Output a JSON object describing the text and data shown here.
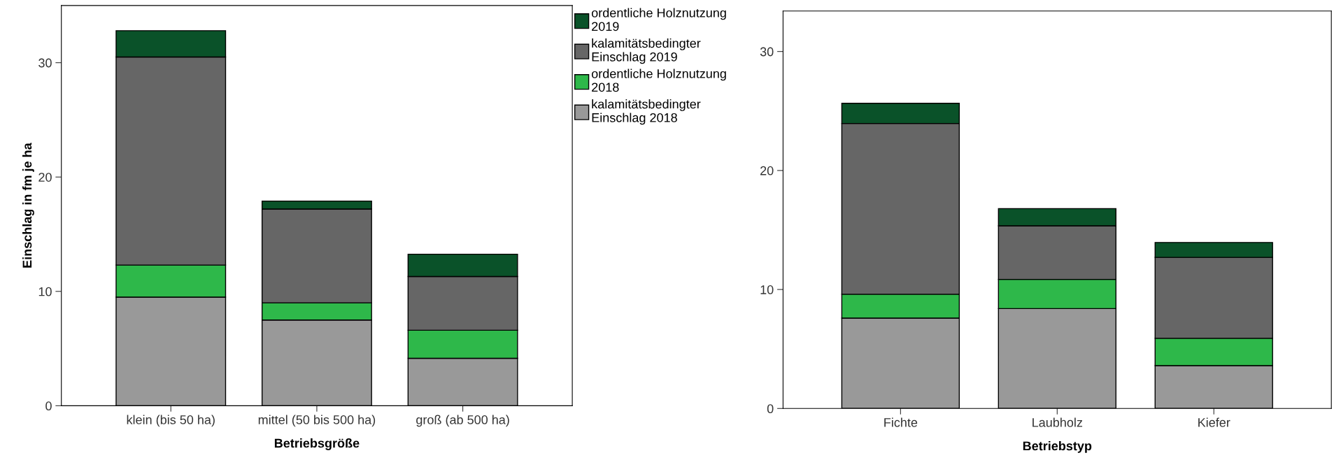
{
  "chart_data": [
    {
      "type": "bar",
      "stacked": true,
      "xlabel": "Betriebsgröße",
      "ylabel": "Einschlag in fm je ha",
      "categories": [
        "klein (bis 50 ha)",
        "mittel (50 bis 500 ha)",
        "groß (ab 500 ha)"
      ],
      "ylim": [
        0,
        35
      ],
      "yticks": [
        0,
        10,
        20,
        30
      ],
      "legend": "right",
      "grid": false,
      "series": [
        {
          "name": "kalamitätsbedingter Einschlag 2018",
          "color": "#999999",
          "values": [
            9.5,
            7.5,
            4.15
          ]
        },
        {
          "name": "ordentliche Holznutzung 2018",
          "color": "#2eb84a",
          "values": [
            2.8,
            1.5,
            2.45
          ]
        },
        {
          "name": "kalamitätsbedingter Einschlag 2019",
          "color": "#666666",
          "values": [
            18.2,
            8.2,
            4.7
          ]
        },
        {
          "name": "ordentliche Holznutzung 2019",
          "color": "#0a5229",
          "values": [
            2.3,
            0.7,
            1.95
          ]
        }
      ]
    },
    {
      "type": "bar",
      "stacked": true,
      "xlabel": "Betriebstyp",
      "categories": [
        "Fichte",
        "Laubholz",
        "Kiefer"
      ],
      "ylim": [
        0,
        33.4
      ],
      "yticks": [
        0,
        10,
        20,
        30
      ],
      "grid": false,
      "series": [
        {
          "color": "#999999",
          "values": [
            7.6,
            8.4,
            3.6
          ]
        },
        {
          "color": "#2eb84a",
          "values": [
            2.0,
            2.45,
            2.3
          ]
        },
        {
          "color": "#666666",
          "values": [
            14.35,
            4.5,
            6.8
          ]
        },
        {
          "color": "#0a5229",
          "values": [
            1.7,
            1.45,
            1.25
          ]
        }
      ]
    }
  ]
}
